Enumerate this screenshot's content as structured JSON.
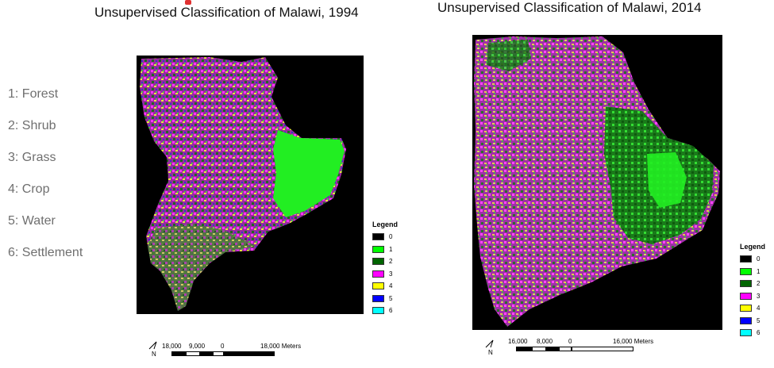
{
  "left_map": {
    "title": "Unsupervised Classification of Malawi, 1994"
  },
  "right_map": {
    "title": "Unsupervised Classification of Malawi, 2014"
  },
  "class_key": [
    {
      "label": "1: Forest"
    },
    {
      "label": "2: Shrub"
    },
    {
      "label": "3: Grass"
    },
    {
      "label": "4: Crop"
    },
    {
      "label": "5: Water"
    },
    {
      "label": "6: Settlement"
    }
  ],
  "legend": {
    "title": "Legend",
    "entries": [
      {
        "value": "0",
        "color": "#000000"
      },
      {
        "value": "1",
        "color": "#00ff00"
      },
      {
        "value": "2",
        "color": "#006400"
      },
      {
        "value": "3",
        "color": "#ff00ff"
      },
      {
        "value": "4",
        "color": "#ffff00"
      },
      {
        "value": "5",
        "color": "#0000ff"
      },
      {
        "value": "6",
        "color": "#00ffff"
      }
    ]
  },
  "scalebar_left": {
    "labels": [
      "18,000",
      "9,000",
      "0",
      "18,000 Meters"
    ]
  },
  "scalebar_right": {
    "labels": [
      "16,000",
      "8,000",
      "0",
      "16,000 Meters"
    ]
  },
  "north_label": "N"
}
